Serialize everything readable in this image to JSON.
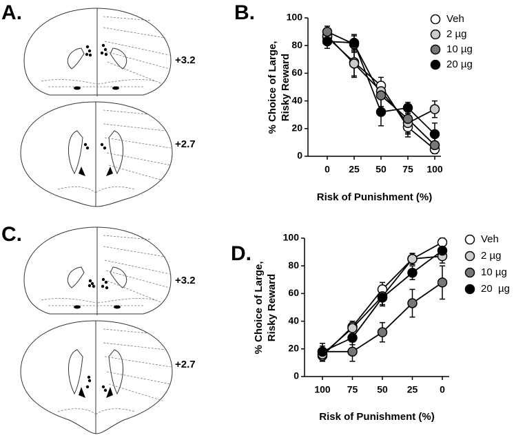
{
  "panels": {
    "labels": [
      "A.",
      "B.",
      "C.",
      "D."
    ],
    "levels": [
      "+3.2",
      "+2.7",
      "+3.2",
      "+2.7"
    ]
  },
  "chart_data": [
    {
      "type": "line",
      "xlabel": "Risk of Punishment (%)",
      "ylabel": [
        "% Choice of Large,",
        "Risky Reward"
      ],
      "categories": [
        "0",
        "25",
        "50",
        "75",
        "100"
      ],
      "ylim": [
        0,
        100
      ],
      "yticks": [
        0,
        20,
        40,
        60,
        80,
        100
      ],
      "series": [
        {
          "name": "Veh",
          "color": "#ffffff",
          "values": [
            86,
            68,
            51,
            21,
            5
          ],
          "errors": [
            4,
            10,
            6,
            7,
            3
          ]
        },
        {
          "name": "2 µg",
          "color": "#cccccc",
          "values": [
            87,
            67,
            47,
            24,
            34
          ],
          "errors": [
            5,
            10,
            5,
            8,
            6
          ]
        },
        {
          "name": "10 µg",
          "color": "#777777",
          "values": [
            90,
            81,
            44,
            27,
            8
          ],
          "errors": [
            4,
            6,
            8,
            10,
            6
          ]
        },
        {
          "name": "20 µg",
          "color": "#000000",
          "values": [
            83,
            82,
            32,
            35,
            16
          ],
          "errors": [
            5,
            6,
            10,
            4,
            8
          ]
        }
      ]
    },
    {
      "type": "line",
      "xlabel": "Risk of Punishment (%)",
      "ylabel": [
        "% Choice of Large,",
        "Risky  Reward"
      ],
      "categories": [
        "100",
        "75",
        "50",
        "25",
        "0"
      ],
      "ylim": [
        0,
        100
      ],
      "yticks": [
        0,
        20,
        40,
        60,
        80,
        100
      ],
      "series": [
        {
          "name": "Veh",
          "color": "#ffffff",
          "values": [
            15,
            36,
            63,
            85,
            97
          ],
          "errors": [
            4,
            4,
            5,
            4,
            3
          ]
        },
        {
          "name": "2 µg",
          "color": "#cccccc",
          "values": [
            16,
            35,
            58,
            85,
            87
          ],
          "errors": [
            4,
            4,
            6,
            4,
            5
          ]
        },
        {
          "name": "10 µg",
          "color": "#777777",
          "values": [
            18,
            18,
            32,
            53,
            68
          ],
          "errors": [
            6,
            7,
            7,
            10,
            12
          ]
        },
        {
          "name": "20  µg",
          "color": "#000000",
          "values": [
            18,
            28,
            57,
            75,
            91
          ],
          "errors": [
            4,
            5,
            6,
            5,
            5
          ]
        }
      ]
    }
  ]
}
